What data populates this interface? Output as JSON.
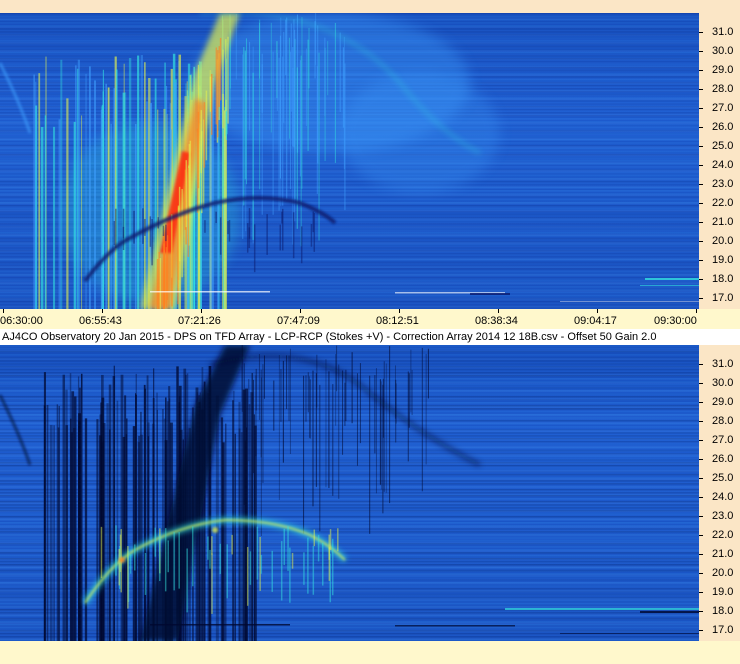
{
  "chart_data": [
    {
      "type": "heatmap",
      "panel": "top",
      "x_tick_labels": [
        "06:30:00",
        "06:55:43",
        "07:21:26",
        "07:47:09",
        "08:12:51",
        "08:38:34",
        "09:04:17",
        "09:30:00"
      ],
      "x_range": [
        "06:30:00",
        "09:30:00"
      ],
      "y_tick_labels": [
        "17.0",
        "18.0",
        "19.0",
        "20.0",
        "21.0",
        "22.0",
        "23.0",
        "24.0",
        "25.0",
        "26.0",
        "27.0",
        "28.0",
        "29.0",
        "30.0",
        "31.0"
      ],
      "y_range": [
        16.4,
        32.0
      ],
      "colormap": [
        "#0a1a6e",
        "#1a56c8",
        "#3fa0ff",
        "#33e0e0",
        "#e0f050",
        "#ff8020",
        "#ff2010"
      ]
    },
    {
      "type": "heatmap",
      "panel": "bottom",
      "caption": "AJ4CO Observatory 20 Jan 2015  -  DPS on TFD Array  -  LCP-RCP (Stokes +V)  -  Correction Array 2014 12 18B.csv  -  Offset 50  Gain 2.0",
      "y_tick_labels": [
        "17.0",
        "18.0",
        "19.0",
        "20.0",
        "21.0",
        "22.0",
        "23.0",
        "24.0",
        "25.0",
        "26.0",
        "27.0",
        "28.0",
        "29.0",
        "30.0",
        "31.0"
      ],
      "y_range": [
        16.4,
        32.0
      ],
      "colormap": [
        "#000830",
        "#1a56c8",
        "#3fa0ff",
        "#33e0e0",
        "#e0f050",
        "#ff8020",
        "#ff2010"
      ]
    }
  ]
}
